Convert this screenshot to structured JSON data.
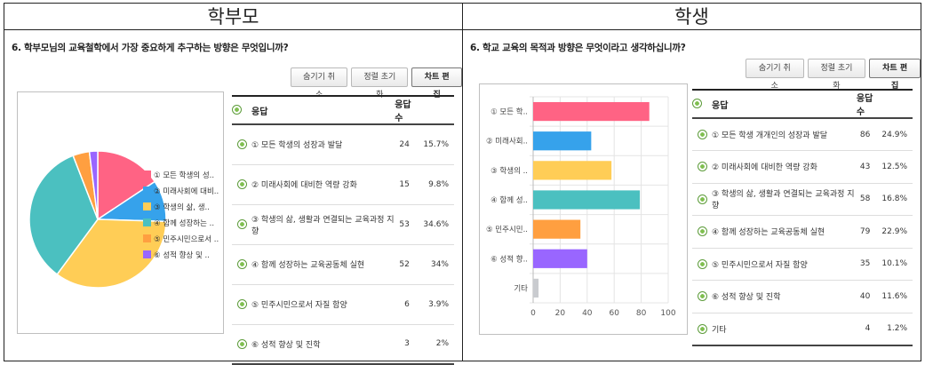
{
  "left": {
    "header": "학부모",
    "question": "6. 학부모님의 교육철학에서 가장 중요하게 추구하는 방향은 무엇입니까?",
    "buttons": [
      "숨기기 취소",
      "정렬 초기화",
      "차트 편집"
    ],
    "table_headers": {
      "answer": "응답",
      "count": "응답수"
    },
    "legend": [
      "① 모든 학생의 성..",
      "② 미래사회에 대비..",
      "③ 학생의 삶, 생..",
      "④ 함께 성장하는 ..",
      "⑤ 민주시민으로서 ..",
      "⑥ 성적 향상 및 .."
    ],
    "chart_data": {
      "type": "pie",
      "categories": [
        "① 모든 학생의 성장과 발달",
        "② 미래사회에 대비한 역량 강화",
        "③ 학생의 삶, 생활과 연결되는 교육과정 지향",
        "④ 함께 성장하는 교육공동체 실현",
        "⑤ 민주시민으로서 자질 함양",
        "⑥ 성적 향상 및 진학"
      ],
      "values": [
        24,
        15,
        53,
        52,
        6,
        3
      ],
      "percents": [
        "15.7%",
        "9.8%",
        "34.6%",
        "34%",
        "3.9%",
        "2%"
      ],
      "colors": [
        "#ff6384",
        "#36a2eb",
        "#ffcd56",
        "#4bc0c0",
        "#ff9f40",
        "#9966ff"
      ]
    }
  },
  "right": {
    "header": "학생",
    "question": "6. 학교 교육의 목적과 방향은 무엇이라고 생각하십니까?",
    "buttons": [
      "숨기기 취소",
      "정렬 초기화",
      "차트 편집"
    ],
    "table_headers": {
      "answer": "응답",
      "count": "응답수"
    },
    "bar_labels": [
      "① 모든 학..",
      "② 미래사회..",
      "③ 학생의 ..",
      "④ 함께 성..",
      "⑤ 민주시민..",
      "⑥ 성적 향..",
      "기타"
    ],
    "chart_data": {
      "type": "bar",
      "orientation": "horizontal",
      "categories": [
        "① 모든 학생 개개인의 성장과 발달",
        "② 미래사회에 대비한 역량 강화",
        "③ 학생의 삶, 생활과 연결되는 교육과정 지향",
        "④ 함께 성장하는 교육공동체 실현",
        "⑤ 민주시민으로서 자질 함양",
        "⑥ 성적 향상 및 진학",
        "기타"
      ],
      "values": [
        86,
        43,
        58,
        79,
        35,
        40,
        4
      ],
      "percents": [
        "24.9%",
        "12.5%",
        "16.8%",
        "22.9%",
        "10.1%",
        "11.6%",
        "1.2%"
      ],
      "colors": [
        "#ff6384",
        "#36a2eb",
        "#ffcd56",
        "#4bc0c0",
        "#ff9f40",
        "#9966ff",
        "#c9cbcf"
      ],
      "xlim": [
        0,
        100
      ],
      "xticks": [
        0,
        20,
        40,
        60,
        80,
        100
      ],
      "grid": true
    }
  }
}
